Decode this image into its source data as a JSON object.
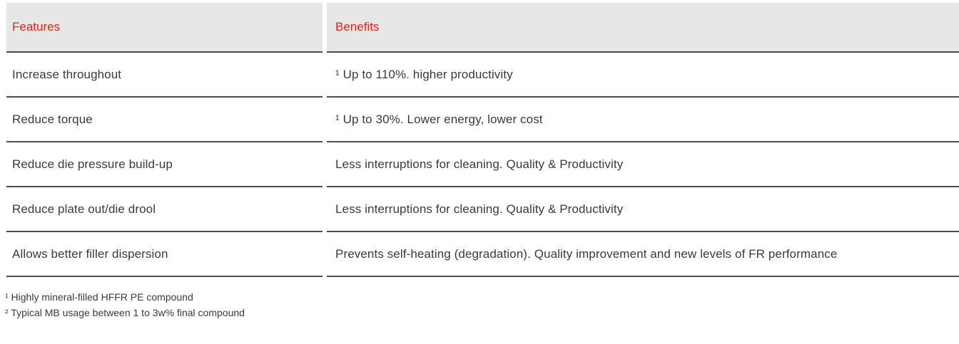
{
  "table": {
    "columns": [
      {
        "label": "Features"
      },
      {
        "label": "Benefits"
      }
    ],
    "rows": [
      {
        "feature": "Increase throughout",
        "benefit": "¹ Up to 110%. higher productivity"
      },
      {
        "feature": "Reduce torque",
        "benefit": "¹ Up to 30%. Lower energy, lower cost"
      },
      {
        "feature": "Reduce die pressure build-up",
        "benefit": "Less interruptions for cleaning. Quality & Productivity"
      },
      {
        "feature": "Reduce plate out/die drool",
        "benefit": "Less interruptions for cleaning. Quality & Productivity"
      },
      {
        "feature": "Allows better filler dispersion",
        "benefit": "Prevents self-heating (degradation). Quality improvement and new levels of FR performance"
      }
    ]
  },
  "footnotes": [
    "¹ Highly mineral-filled HFFR PE compound",
    "² Typical MB usage between 1 to 3w% final compound"
  ],
  "colors": {
    "header_text": "#e2231a",
    "header_background": "#e7e7e7",
    "body_text": "#3a3a39",
    "divider": "#4d4d4d"
  }
}
